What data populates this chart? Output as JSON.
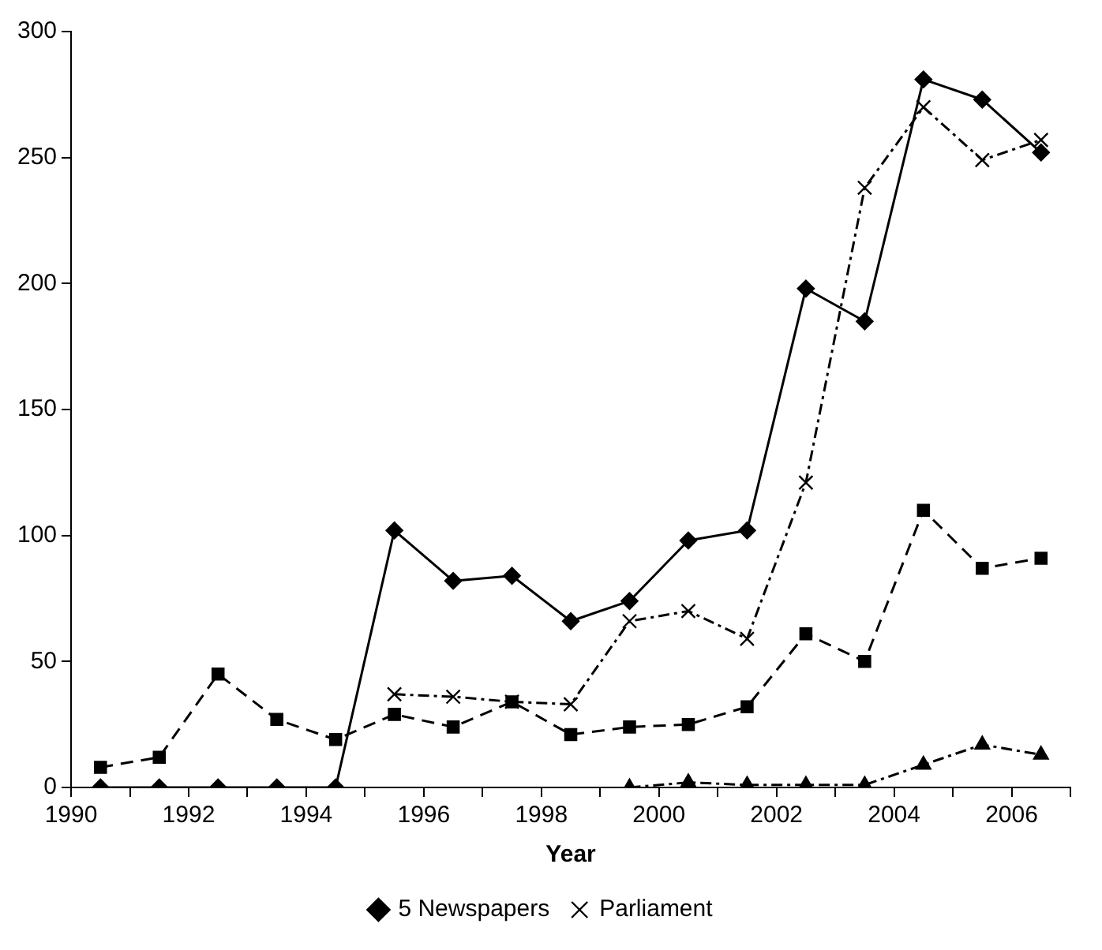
{
  "chart_data": {
    "type": "line",
    "xlabel": "Year",
    "x": [
      1990.5,
      1991.5,
      1992.5,
      1993.5,
      1994.5,
      1995.5,
      1996.5,
      1997.5,
      1998.5,
      1999.5,
      2000.5,
      2001.5,
      2002.5,
      2003.5,
      2004.5,
      2005.5,
      2006.5
    ],
    "xlim": [
      1990,
      2007
    ],
    "xticks": [
      1990,
      {
        "value": 1991,
        "label": null
      },
      1992,
      {
        "value": 1993,
        "label": null
      },
      1994,
      {
        "value": 1995,
        "label": null
      },
      1996,
      {
        "value": 1997,
        "label": null
      },
      1998,
      {
        "value": 1999,
        "label": null
      },
      2000,
      {
        "value": 2001,
        "label": null
      },
      2002,
      {
        "value": 2003,
        "label": null
      },
      2004,
      {
        "value": 2005,
        "label": null
      },
      2006,
      {
        "value": 2007,
        "label": null
      }
    ],
    "ylim": [
      0,
      300
    ],
    "yticks": [
      0,
      50,
      100,
      150,
      200,
      250,
      300
    ],
    "grid": false,
    "legend": "bottom",
    "series": [
      {
        "name": "5 Newspapers",
        "color": "#000000",
        "marker": "diamond",
        "line_style": "solid",
        "values": [
          0,
          0,
          0,
          0,
          0,
          102,
          82,
          84,
          66,
          74,
          98,
          102,
          198,
          185,
          281,
          273,
          252
        ]
      },
      {
        "color": "#000000",
        "marker": "square",
        "line_style": "dashed",
        "values": [
          8,
          12,
          45,
          27,
          19,
          29,
          24,
          34,
          21,
          24,
          25,
          32,
          61,
          50,
          110,
          87,
          91
        ]
      },
      {
        "color": "#000000",
        "marker": "triangle",
        "line_style": "dotted",
        "values": [
          null,
          null,
          null,
          null,
          null,
          null,
          null,
          null,
          null,
          0,
          2,
          1,
          1,
          1,
          9,
          17,
          13
        ]
      },
      {
        "name": "Parliament",
        "color": "#000000",
        "marker": "cross",
        "line_style": "dotted",
        "values": [
          null,
          null,
          null,
          null,
          null,
          37,
          36,
          34,
          33,
          66,
          70,
          59,
          121,
          238,
          270,
          249,
          257
        ]
      }
    ]
  }
}
